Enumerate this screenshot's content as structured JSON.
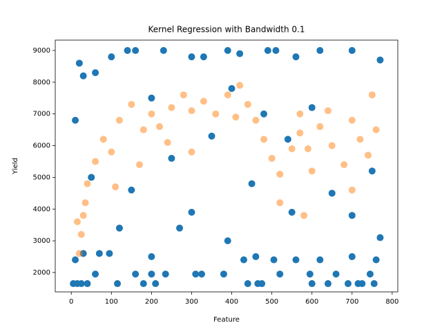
{
  "chart_data": {
    "type": "scatter",
    "title": "Kernel Regression with Bandwidth 0.1",
    "x_label": "Feature",
    "y_label": "Yield",
    "xlim": [
      -40,
      814
    ],
    "ylim": [
      1389,
      9327
    ],
    "xticks": [
      0,
      100,
      200,
      300,
      400,
      500,
      600,
      700,
      800
    ],
    "yticks": [
      2000,
      3000,
      4000,
      5000,
      6000,
      7000,
      8000,
      9000
    ],
    "series": [
      {
        "color": "#1f77b4",
        "x": [
          5,
          15,
          25,
          40,
          60,
          115,
          160,
          180,
          200,
          210,
          235,
          310,
          325,
          380,
          440,
          465,
          475,
          520,
          595,
          600,
          640,
          660,
          690,
          715,
          725,
          745,
          755,
          10,
          30,
          70,
          95,
          200,
          270,
          390,
          430,
          460,
          505,
          560,
          620,
          700,
          760,
          770,
          10,
          20,
          30,
          60,
          100,
          140,
          160,
          230,
          300,
          330,
          390,
          420,
          490,
          510,
          560,
          620,
          700,
          770,
          50,
          150,
          250,
          350,
          450,
          550,
          650,
          750,
          200,
          400,
          600,
          300,
          120,
          480,
          700,
          540
        ],
        "values": [
          1650,
          1650,
          1650,
          1650,
          1950,
          1650,
          1950,
          1650,
          1950,
          1650,
          1950,
          1950,
          1950,
          1950,
          1650,
          1650,
          1650,
          1950,
          1950,
          1650,
          1650,
          1950,
          1650,
          1650,
          1650,
          1950,
          1650,
          2400,
          2600,
          2600,
          2600,
          2500,
          3400,
          3000,
          2400,
          2500,
          2400,
          2400,
          2400,
          2500,
          2400,
          3100,
          6800,
          8600,
          8200,
          8300,
          8800,
          9000,
          9000,
          9000,
          8800,
          8800,
          9000,
          8900,
          9000,
          9000,
          8800,
          9000,
          9000,
          8700,
          5000,
          4600,
          5600,
          6300,
          4800,
          3900,
          4500,
          5200,
          7500,
          7800,
          7200,
          3900,
          3400,
          7000,
          3800,
          6200
        ]
      },
      {
        "color": "#ff7f0e",
        "x": [
          20,
          25,
          30,
          40,
          60,
          80,
          100,
          120,
          150,
          180,
          200,
          220,
          250,
          280,
          300,
          330,
          360,
          390,
          420,
          440,
          460,
          480,
          500,
          520,
          550,
          570,
          590,
          600,
          620,
          650,
          680,
          700,
          720,
          740,
          760,
          110,
          170,
          300,
          520,
          580,
          700,
          35,
          15,
          240,
          410,
          640,
          750,
          570
        ],
        "values": [
          2600,
          3200,
          3800,
          4800,
          5500,
          6200,
          5800,
          6800,
          7300,
          6500,
          7000,
          6600,
          7200,
          7600,
          7100,
          7400,
          7000,
          7600,
          7900,
          7300,
          6800,
          6200,
          5600,
          5100,
          5900,
          6400,
          5900,
          5200,
          6600,
          6000,
          5400,
          6800,
          6200,
          5700,
          6500,
          4700,
          5400,
          5800,
          4200,
          3800,
          4600,
          4200,
          3600,
          6100,
          6900,
          7100,
          7600,
          7000
        ]
      }
    ]
  }
}
